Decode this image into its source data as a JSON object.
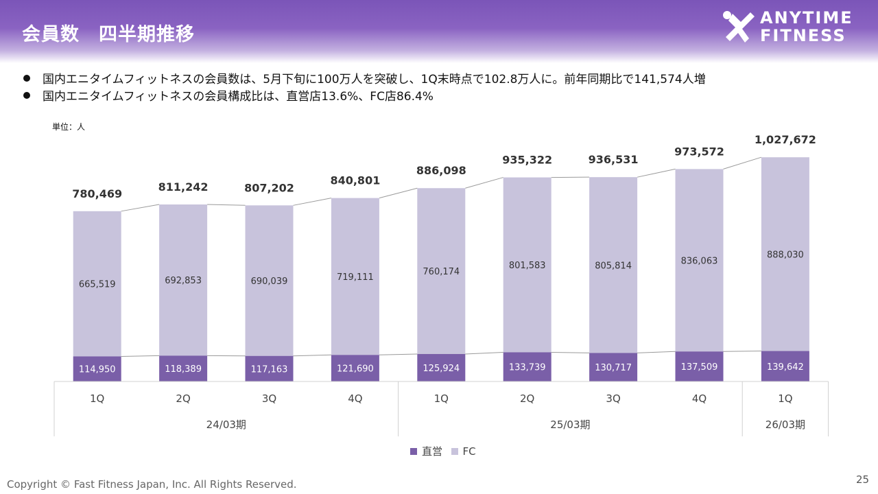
{
  "header": {
    "title": "会員数　四半期推移",
    "logo_line1": "ANYTIME",
    "logo_line2": "FITNESS"
  },
  "bullets": [
    "国内エニタイムフィットネスの会員数は、5月下旬に100万人を突破し、1Q末時点で102.8万人に。前年同期比で141,574人増",
    "国内エニタイムフィットネスの会員構成比は、直営店13.6%、FC店86.4%"
  ],
  "unit_label": "単位：人",
  "colors": {
    "direct": "#7a5fa8",
    "fc": "#c8c3dc",
    "header": "#7b55b8",
    "connector": "#999999"
  },
  "chart_data": {
    "type": "bar",
    "stacked": true,
    "categories": [
      "1Q",
      "2Q",
      "3Q",
      "4Q",
      "1Q",
      "2Q",
      "3Q",
      "4Q",
      "1Q"
    ],
    "period_groups": [
      {
        "label": "24/03期",
        "count": 4
      },
      {
        "label": "25/03期",
        "count": 4
      },
      {
        "label": "26/03期",
        "count": 1
      }
    ],
    "series": [
      {
        "name": "直営",
        "values": [
          114950,
          118389,
          117163,
          121690,
          125924,
          133739,
          130717,
          137509,
          139642
        ]
      },
      {
        "name": "FC",
        "values": [
          665519,
          692853,
          690039,
          719111,
          760174,
          801583,
          805814,
          836063,
          888030
        ]
      }
    ],
    "totals": [
      780469,
      811242,
      807202,
      840801,
      886098,
      935322,
      936531,
      973572,
      1027672
    ],
    "ylim": [
      0,
      1100000
    ],
    "legend_position": "bottom"
  },
  "footer": "Copyright © Fast Fitness Japan, Inc. All Rights Reserved.",
  "page_number": "25"
}
